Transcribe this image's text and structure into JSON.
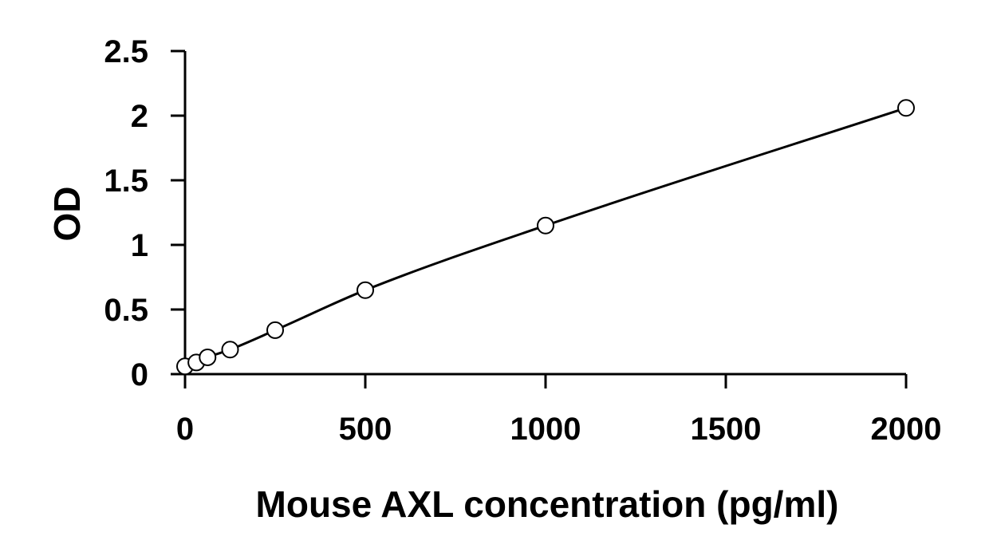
{
  "chart_data": {
    "type": "scatter",
    "title": "",
    "xlabel": "Mouse AXL concentration (pg/ml)",
    "ylabel": "OD",
    "xlim": [
      0,
      2000
    ],
    "ylim": [
      0,
      2.5
    ],
    "x_ticks": [
      0,
      500,
      1000,
      1500,
      2000
    ],
    "y_ticks": [
      0,
      0.5,
      1,
      1.5,
      2,
      2.5
    ],
    "x_tick_labels": [
      "0",
      "500",
      "1000",
      "1500",
      "2000"
    ],
    "y_tick_labels": [
      "0",
      "0.5",
      "1",
      "1.5",
      "2",
      "2.5"
    ],
    "grid": false,
    "legend": "none",
    "series": [
      {
        "marker": "open-circle",
        "trendline": "smooth",
        "x": [
          0,
          31.25,
          62.5,
          125,
          250,
          500,
          1000,
          2000
        ],
        "y": [
          0.06,
          0.09,
          0.13,
          0.19,
          0.34,
          0.65,
          1.15,
          2.06
        ]
      }
    ]
  }
}
